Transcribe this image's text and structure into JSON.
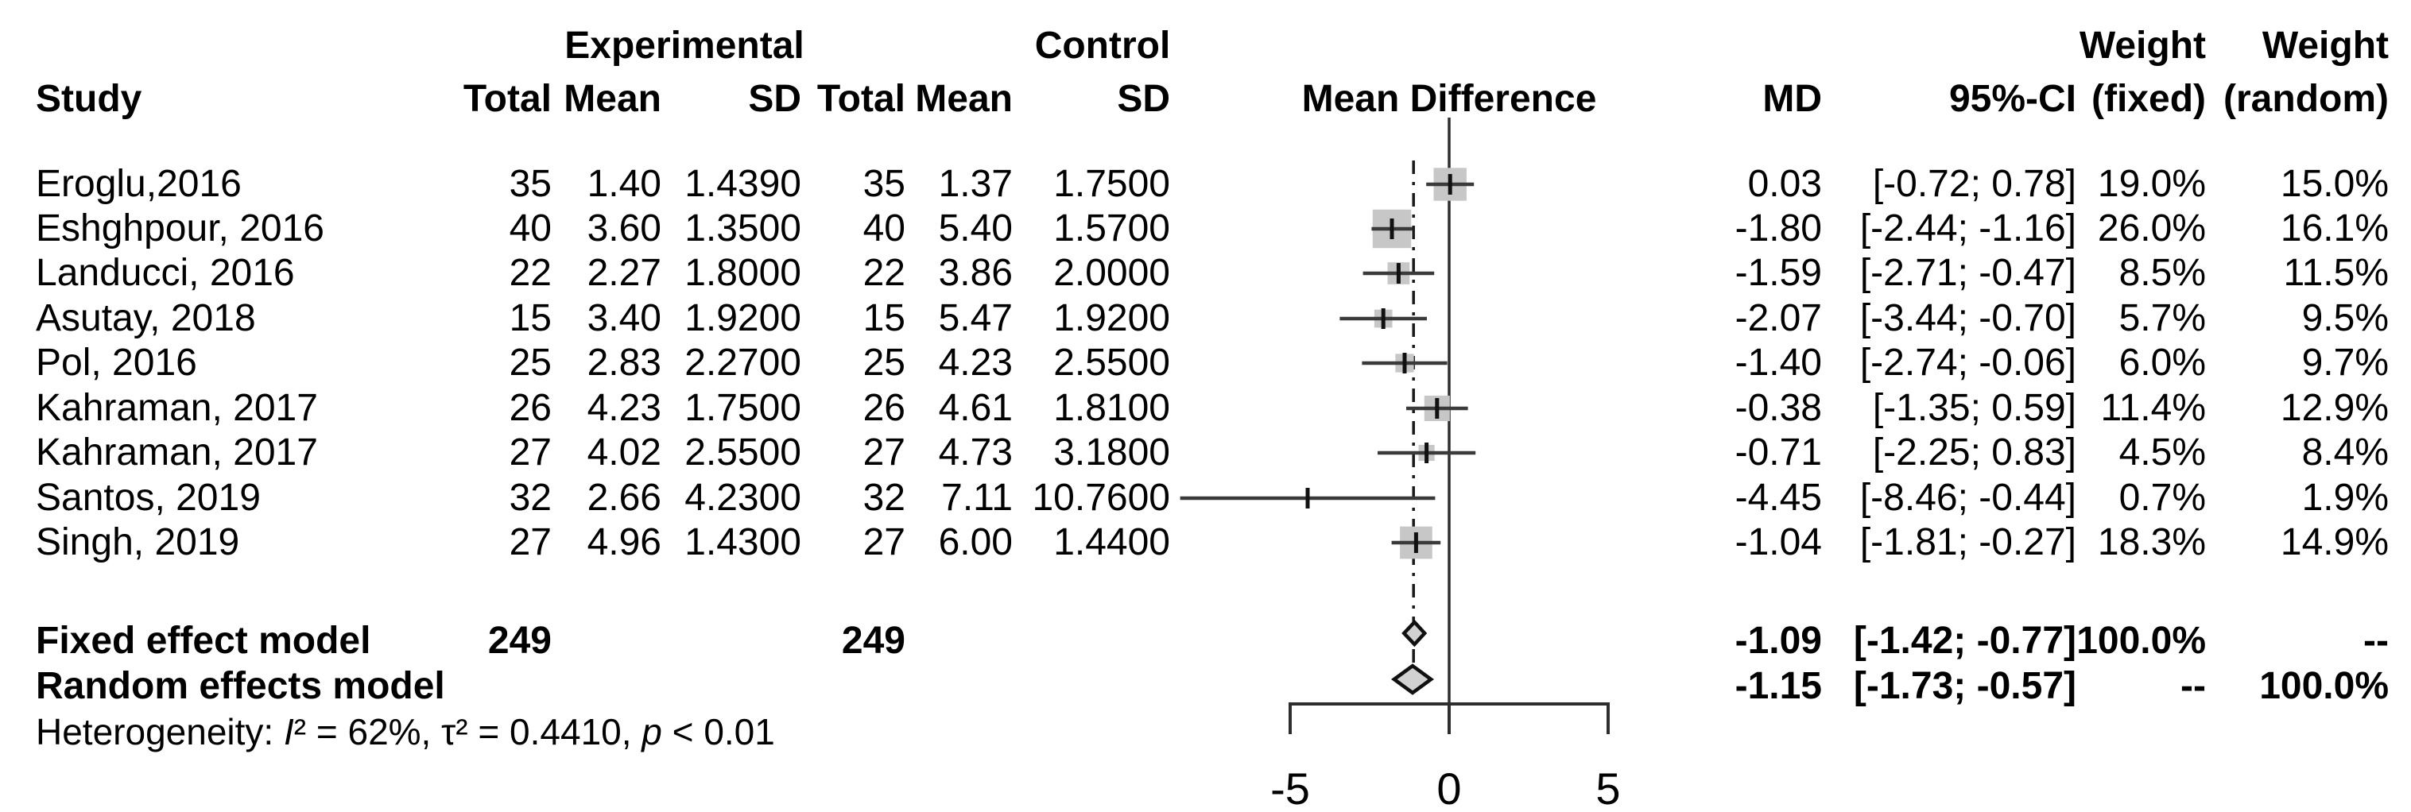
{
  "header": {
    "group_experimental": "Experimental",
    "group_control": "Control",
    "weight_fixed_line1": "Weight",
    "weight_random_line1": "Weight",
    "study": "Study",
    "exp_total": "Total",
    "exp_mean": "Mean",
    "exp_sd": "SD",
    "ctrl_total": "Total",
    "ctrl_mean": "Mean",
    "ctrl_sd": "SD",
    "mean_difference": "Mean Difference",
    "md": "MD",
    "ci": "95%-CI",
    "weight_fixed_line2": "(fixed)",
    "weight_random_line2": "(random)"
  },
  "rows": [
    {
      "study": "Eroglu,2016",
      "exp_total": "35",
      "exp_mean": "1.40",
      "exp_sd": "1.4390",
      "ctrl_total": "35",
      "ctrl_mean": "1.37",
      "ctrl_sd": "1.7500",
      "md": "0.03",
      "ci": "[-0.72; 0.78]",
      "w_fixed": "19.0%",
      "w_random": "15.0%"
    },
    {
      "study": "Eshghpour, 2016",
      "exp_total": "40",
      "exp_mean": "3.60",
      "exp_sd": "1.3500",
      "ctrl_total": "40",
      "ctrl_mean": "5.40",
      "ctrl_sd": "1.5700",
      "md": "-1.80",
      "ci": "[-2.44; -1.16]",
      "w_fixed": "26.0%",
      "w_random": "16.1%"
    },
    {
      "study": "Landucci, 2016",
      "exp_total": "22",
      "exp_mean": "2.27",
      "exp_sd": "1.8000",
      "ctrl_total": "22",
      "ctrl_mean": "3.86",
      "ctrl_sd": "2.0000",
      "md": "-1.59",
      "ci": "[-2.71; -0.47]",
      "w_fixed": "8.5%",
      "w_random": "11.5%"
    },
    {
      "study": "Asutay, 2018",
      "exp_total": "15",
      "exp_mean": "3.40",
      "exp_sd": "1.9200",
      "ctrl_total": "15",
      "ctrl_mean": "5.47",
      "ctrl_sd": "1.9200",
      "md": "-2.07",
      "ci": "[-3.44; -0.70]",
      "w_fixed": "5.7%",
      "w_random": "9.5%"
    },
    {
      "study": "Pol, 2016",
      "exp_total": "25",
      "exp_mean": "2.83",
      "exp_sd": "2.2700",
      "ctrl_total": "25",
      "ctrl_mean": "4.23",
      "ctrl_sd": "2.5500",
      "md": "-1.40",
      "ci": "[-2.74; -0.06]",
      "w_fixed": "6.0%",
      "w_random": "9.7%"
    },
    {
      "study": "Kahraman, 2017",
      "exp_total": "26",
      "exp_mean": "4.23",
      "exp_sd": "1.7500",
      "ctrl_total": "26",
      "ctrl_mean": "4.61",
      "ctrl_sd": "1.8100",
      "md": "-0.38",
      "ci": "[-1.35; 0.59]",
      "w_fixed": "11.4%",
      "w_random": "12.9%"
    },
    {
      "study": "Kahraman, 2017",
      "exp_total": "27",
      "exp_mean": "4.02",
      "exp_sd": "2.5500",
      "ctrl_total": "27",
      "ctrl_mean": "4.73",
      "ctrl_sd": "3.1800",
      "md": "-0.71",
      "ci": "[-2.25; 0.83]",
      "w_fixed": "4.5%",
      "w_random": "8.4%"
    },
    {
      "study": "Santos, 2019",
      "exp_total": "32",
      "exp_mean": "2.66",
      "exp_sd": "4.2300",
      "ctrl_total": "32",
      "ctrl_mean": "7.11",
      "ctrl_sd": "10.7600",
      "md": "-4.45",
      "ci": "[-8.46; -0.44]",
      "w_fixed": "0.7%",
      "w_random": "1.9%"
    },
    {
      "study": "Singh, 2019",
      "exp_total": "27",
      "exp_mean": "4.96",
      "exp_sd": "1.4300",
      "ctrl_total": "27",
      "ctrl_mean": "6.00",
      "ctrl_sd": "1.4400",
      "md": "-1.04",
      "ci": "[-1.81; -0.27]",
      "w_fixed": "18.3%",
      "w_random": "14.9%"
    }
  ],
  "summary": {
    "fixed": {
      "label": "Fixed effect model",
      "exp_total": "249",
      "ctrl_total": "249",
      "md": "-1.09",
      "ci": "[-1.42; -0.77]",
      "w_fixed": "100.0%",
      "w_random": "--"
    },
    "random": {
      "label": "Random effects model",
      "md": "-1.15",
      "ci": "[-1.73; -0.57]",
      "w_fixed": "--",
      "w_random": "100.0%"
    },
    "heterogeneity": {
      "prefix": "Heterogeneity: ",
      "i_label": "I",
      "mid": "² = 62%, τ² = 0.4410, ",
      "p_label": "p",
      "tail": " < 0.01"
    }
  },
  "axis": {
    "tick_labels": [
      "-5",
      "0",
      "5"
    ]
  },
  "colors": {
    "background": "#ffffff",
    "text": "#000000",
    "ci_line": "#3a3a3a",
    "axis_line": "#2e2e2e",
    "zero_line": "#2e2e2e",
    "overall_dash_line": "#1a1a1a",
    "square_fill": "#c7c7c7",
    "diamond_fill": "#d2d2d2",
    "marker": "#111111"
  },
  "chart_data": {
    "type": "forest",
    "title": "Mean Difference",
    "xlim": [
      -5,
      5
    ],
    "x_ticks": [
      -5,
      0,
      5
    ],
    "reference_line": 0,
    "overall_line": -1.12,
    "studies": [
      {
        "name": "Eroglu,2016",
        "md": 0.03,
        "ci": [
          -0.72,
          0.78
        ],
        "weight_fixed": 19.0,
        "weight_random": 15.0
      },
      {
        "name": "Eshghpour, 2016",
        "md": -1.8,
        "ci": [
          -2.44,
          -1.16
        ],
        "weight_fixed": 26.0,
        "weight_random": 16.1
      },
      {
        "name": "Landucci, 2016",
        "md": -1.59,
        "ci": [
          -2.71,
          -0.47
        ],
        "weight_fixed": 8.5,
        "weight_random": 11.5
      },
      {
        "name": "Asutay, 2018",
        "md": -2.07,
        "ci": [
          -3.44,
          -0.7
        ],
        "weight_fixed": 5.7,
        "weight_random": 9.5
      },
      {
        "name": "Pol, 2016",
        "md": -1.4,
        "ci": [
          -2.74,
          -0.06
        ],
        "weight_fixed": 6.0,
        "weight_random": 9.7
      },
      {
        "name": "Kahraman, 2017",
        "md": -0.38,
        "ci": [
          -1.35,
          0.59
        ],
        "weight_fixed": 11.4,
        "weight_random": 12.9
      },
      {
        "name": "Kahraman, 2017",
        "md": -0.71,
        "ci": [
          -2.25,
          0.83
        ],
        "weight_fixed": 4.5,
        "weight_random": 8.4
      },
      {
        "name": "Santos, 2019",
        "md": -4.45,
        "ci": [
          -8.46,
          -0.44
        ],
        "weight_fixed": 0.7,
        "weight_random": 1.9
      },
      {
        "name": "Singh, 2019",
        "md": -1.04,
        "ci": [
          -1.81,
          -0.27
        ],
        "weight_fixed": 18.3,
        "weight_random": 14.9
      }
    ],
    "fixed_effect": {
      "md": -1.09,
      "ci": [
        -1.42,
        -0.77
      ],
      "total_experimental": 249,
      "total_control": 249,
      "weight_fixed": "100.0%"
    },
    "random_effects": {
      "md": -1.15,
      "ci": [
        -1.73,
        -0.57
      ],
      "weight_random": "100.0%"
    },
    "heterogeneity": {
      "I2": "62%",
      "tau2": 0.441,
      "p": "< 0.01"
    }
  }
}
